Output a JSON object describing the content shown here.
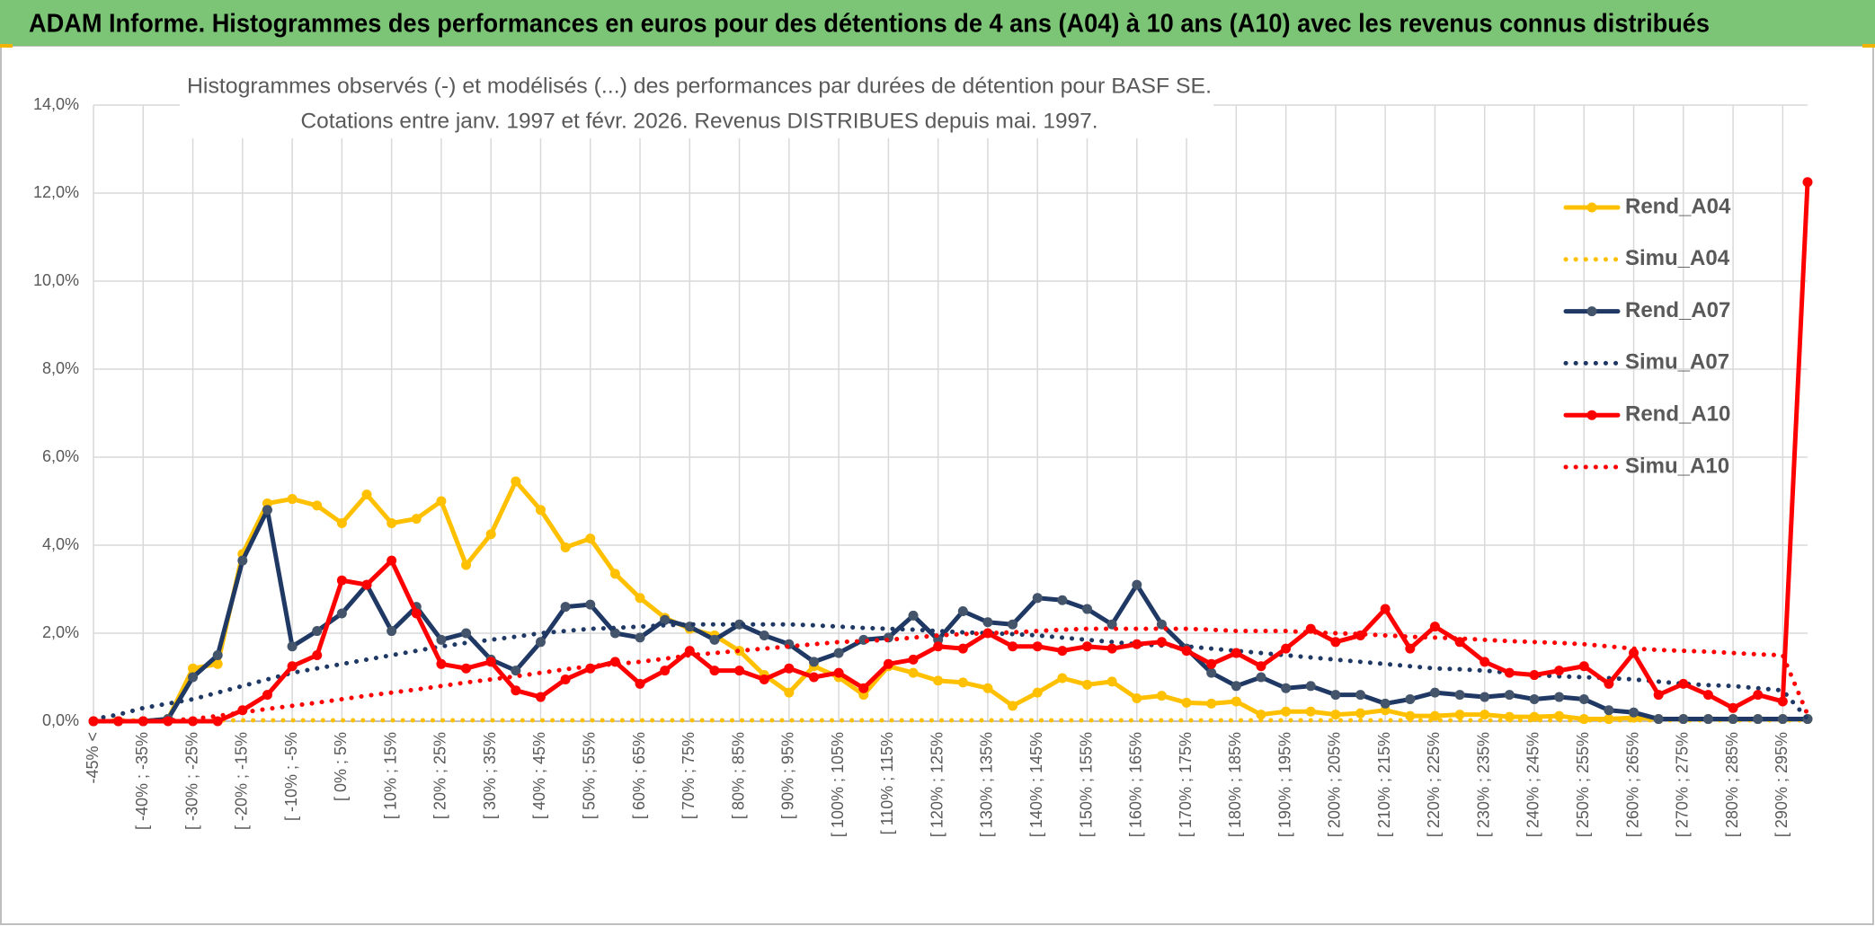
{
  "header": {
    "title": "ADAM Informe. Histogrammes des performances en euros pour des détentions de 4 ans (A04) à 10 ans (A10) avec les revenus connus distribués"
  },
  "chart_data": {
    "type": "line",
    "title": "Histogrammes observés (-) et modélisés (...) des performances par durées de détention pour BASF SE.",
    "subtitle": "Cotations entre janv. 1997 et févr. 2026. Revenus DISTRIBUES depuis mai. 1997.",
    "categories": [
      "-45% <",
      null,
      "[ -40% ; -35%",
      null,
      "[ -30% ; -25%",
      null,
      "[ -20% ; -15%",
      null,
      "[ -10% ; -5%",
      null,
      "[ 0% ; 5%",
      null,
      "[ 10% ; 15%",
      null,
      "[ 20% ; 25%",
      null,
      "[ 30% ; 35%",
      null,
      "[ 40% ; 45%",
      null,
      "[ 50% ; 55%",
      null,
      "[ 60% ; 65%",
      null,
      "[ 70% ; 75%",
      null,
      "[ 80% ; 85%",
      null,
      "[ 90% ; 95%",
      null,
      "[ 100% ; 105%",
      null,
      "[ 110% ; 115%",
      null,
      "[ 120% ; 125%",
      null,
      "[ 130% ; 135%",
      null,
      "[ 140% ; 145%",
      null,
      "[ 150% ; 155%",
      null,
      "[ 160% ; 165%",
      null,
      "[ 170% ; 175%",
      null,
      "[ 180% ; 185%",
      null,
      "[ 190% ; 195%",
      null,
      "[ 200% ; 205%",
      null,
      "[ 210% ; 215%",
      null,
      "[ 220% ; 225%",
      null,
      "[ 230% ; 235%",
      null,
      "[ 240% ; 245%",
      null,
      "[ 250% ; 255%",
      null,
      "[ 260% ; 265%",
      null,
      "[ 270% ; 275%",
      null,
      "[ 280% ; 285%",
      null,
      "[ 290% ; 295%",
      null
    ],
    "series": [
      {
        "name": "Rend_A04",
        "color": "#ffc000",
        "line_style": "solid",
        "markers": true,
        "values": [
          0,
          0,
          0,
          0.05,
          1.2,
          1.3,
          3.8,
          4.95,
          5.05,
          4.9,
          4.5,
          5.15,
          4.5,
          4.6,
          5.0,
          3.55,
          4.25,
          5.45,
          4.8,
          3.95,
          4.15,
          3.35,
          2.8,
          2.35,
          2.1,
          1.95,
          1.6,
          1.05,
          0.65,
          1.25,
          1.0,
          0.6,
          1.25,
          1.1,
          0.92,
          0.88,
          0.75,
          0.35,
          0.65,
          0.98,
          0.83,
          0.9,
          0.52,
          0.58,
          0.42,
          0.4,
          0.45,
          0.15,
          0.22,
          0.22,
          0.15,
          0.18,
          0.25,
          0.12,
          0.12,
          0.15,
          0.15,
          0.1,
          0.1,
          0.12,
          0.05,
          0.05,
          0.08,
          0.05,
          0.05,
          0.05,
          0.05,
          0.05,
          0.05,
          0.05
        ]
      },
      {
        "name": "Simu_A04",
        "color": "#ffc000",
        "line_style": "dotted",
        "markers": false,
        "values": [
          0.02,
          0.02,
          0.02,
          0.02,
          0.02,
          0.02,
          0.02,
          0.02,
          0.02,
          0.02,
          0.02,
          0.02,
          0.02,
          0.02,
          0.02,
          0.02,
          0.02,
          0.02,
          0.02,
          0.02,
          0.02,
          0.02,
          0.02,
          0.02,
          0.02,
          0.02,
          0.02,
          0.02,
          0.02,
          0.02,
          0.02,
          0.02,
          0.02,
          0.02,
          0.02,
          0.02,
          0.02,
          0.02,
          0.02,
          0.02,
          0.02,
          0.02,
          0.02,
          0.02,
          0.02,
          0.02,
          0.02,
          0.02,
          0.02,
          0.02,
          0.02,
          0.02,
          0.02,
          0.02,
          0.02,
          0.02,
          0.02,
          0.02,
          0.02,
          0.02,
          0.02,
          0.02,
          0.02,
          0.02,
          0.02,
          0.02,
          0.02,
          0.02,
          0.02,
          0.02
        ]
      },
      {
        "name": "Rend_A07",
        "color": "#1f3864",
        "line_style": "solid",
        "markers": true,
        "marker_color": "#44546a",
        "values": [
          0,
          0,
          0,
          0.05,
          1.0,
          1.5,
          3.65,
          4.8,
          1.7,
          2.05,
          2.45,
          3.1,
          2.05,
          2.6,
          1.85,
          2.0,
          1.4,
          1.15,
          1.8,
          2.6,
          2.65,
          2.0,
          1.9,
          2.3,
          2.15,
          1.85,
          2.2,
          1.95,
          1.75,
          1.35,
          1.55,
          1.85,
          1.9,
          2.4,
          1.85,
          2.5,
          2.25,
          2.2,
          2.8,
          2.75,
          2.55,
          2.2,
          3.1,
          2.2,
          1.65,
          1.1,
          0.8,
          1.0,
          0.75,
          0.8,
          0.6,
          0.6,
          0.4,
          0.5,
          0.65,
          0.6,
          0.55,
          0.6,
          0.5,
          0.55,
          0.5,
          0.25,
          0.2,
          0.05,
          0.05,
          0.05,
          0.05,
          0.05,
          0.05,
          0.05
        ]
      },
      {
        "name": "Simu_A07",
        "color": "#1f3864",
        "line_style": "dotted",
        "markers": false,
        "values": [
          0.05,
          0.15,
          0.3,
          0.4,
          0.5,
          0.65,
          0.8,
          0.95,
          1.1,
          1.2,
          1.3,
          1.4,
          1.5,
          1.6,
          1.7,
          1.78,
          1.85,
          1.92,
          2.0,
          2.05,
          2.1,
          2.12,
          2.15,
          2.18,
          2.2,
          2.2,
          2.2,
          2.2,
          2.2,
          2.18,
          2.15,
          2.12,
          2.1,
          2.08,
          2.05,
          2.02,
          2.0,
          1.98,
          1.95,
          1.9,
          1.85,
          1.8,
          1.75,
          1.72,
          1.7,
          1.65,
          1.6,
          1.55,
          1.5,
          1.45,
          1.4,
          1.35,
          1.3,
          1.25,
          1.2,
          1.18,
          1.15,
          1.1,
          1.05,
          1.02,
          1.0,
          0.98,
          0.95,
          0.9,
          0.85,
          0.82,
          0.8,
          0.75,
          0.7,
          0.05
        ]
      },
      {
        "name": "Rend_A10",
        "color": "#ff0000",
        "line_style": "solid",
        "markers": true,
        "values": [
          0,
          0,
          0,
          0,
          0,
          0,
          0.25,
          0.6,
          1.25,
          1.5,
          3.2,
          3.1,
          3.65,
          2.45,
          1.3,
          1.2,
          1.35,
          0.7,
          0.55,
          0.95,
          1.2,
          1.35,
          0.85,
          1.15,
          1.6,
          1.15,
          1.15,
          0.95,
          1.2,
          1.0,
          1.1,
          0.75,
          1.3,
          1.4,
          1.7,
          1.65,
          2.0,
          1.7,
          1.7,
          1.6,
          1.7,
          1.65,
          1.75,
          1.8,
          1.6,
          1.3,
          1.55,
          1.25,
          1.65,
          2.1,
          1.8,
          1.95,
          2.55,
          1.65,
          2.15,
          1.8,
          1.35,
          1.1,
          1.05,
          1.15,
          1.25,
          0.85,
          1.55,
          0.6,
          0.85,
          0.6,
          0.3,
          0.6,
          0.45,
          12.25
        ]
      },
      {
        "name": "Simu_A10",
        "color": "#ff0000",
        "line_style": "dotted",
        "markers": false,
        "values": [
          0,
          0,
          0,
          0.02,
          0.05,
          0.12,
          0.2,
          0.28,
          0.35,
          0.42,
          0.5,
          0.58,
          0.65,
          0.72,
          0.8,
          0.88,
          0.95,
          1.02,
          1.1,
          1.18,
          1.25,
          1.3,
          1.35,
          1.42,
          1.5,
          1.55,
          1.6,
          1.65,
          1.7,
          1.75,
          1.8,
          1.82,
          1.85,
          1.9,
          1.95,
          1.98,
          2.0,
          2.02,
          2.05,
          2.08,
          2.1,
          2.1,
          2.1,
          2.1,
          2.1,
          2.08,
          2.05,
          2.05,
          2.05,
          2.02,
          2.0,
          1.98,
          1.95,
          1.92,
          1.9,
          1.88,
          1.85,
          1.82,
          1.8,
          1.78,
          1.75,
          1.7,
          1.65,
          1.62,
          1.6,
          1.58,
          1.55,
          1.52,
          1.5,
          0.15
        ]
      }
    ],
    "ylim": [
      0,
      14
    ],
    "yticks": [
      {
        "value": 0,
        "label": "0,0%"
      },
      {
        "value": 2,
        "label": "2,0%"
      },
      {
        "value": 4,
        "label": "4,0%"
      },
      {
        "value": 6,
        "label": "6,0%"
      },
      {
        "value": 8,
        "label": "8,0%"
      },
      {
        "value": 10,
        "label": "10,0%"
      },
      {
        "value": 12,
        "label": "12,0%"
      },
      {
        "value": 14,
        "label": "14,0%"
      }
    ],
    "grid": true,
    "legend": "right"
  }
}
